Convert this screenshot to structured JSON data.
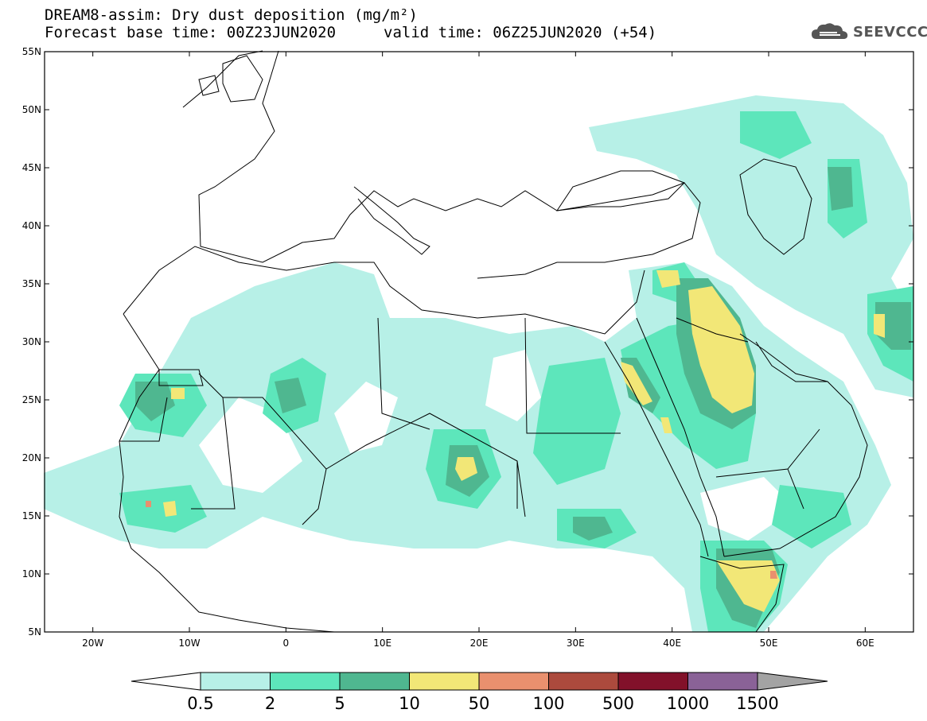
{
  "header": {
    "title_line1": "DREAM8-assim: Dry dust deposition (mg/m²)",
    "title_line2": "Forecast base time: 00Z23JUN2020",
    "valid_time": "valid time: 06Z25JUN2020 (+54)",
    "logo_text": "SEEVCCC",
    "logo_icon": "cloud-logo-icon"
  },
  "axes": {
    "lat_labels": [
      "55N",
      "50N",
      "45N",
      "40N",
      "35N",
      "30N",
      "25N",
      "20N",
      "15N",
      "10N",
      "5N"
    ],
    "lat_values": [
      55,
      50,
      45,
      40,
      35,
      30,
      25,
      20,
      15,
      10,
      5
    ],
    "lon_labels": [
      "20W",
      "10W",
      "0",
      "10E",
      "20E",
      "30E",
      "40E",
      "50E",
      "60E"
    ],
    "lon_values": [
      -20,
      -10,
      0,
      10,
      20,
      30,
      40,
      50,
      60
    ],
    "lon_range": [
      -25,
      65
    ],
    "lat_range": [
      5,
      55
    ]
  },
  "colorbar": {
    "labels": [
      "0.5",
      "2",
      "5",
      "10",
      "50",
      "100",
      "500",
      "1000",
      "1500"
    ],
    "colors": [
      "#ffffff",
      "#b7f0e7",
      "#5de6bb",
      "#4fb790",
      "#f2e777",
      "#e9906e",
      "#ac4a3d",
      "#82112a",
      "#8a6297",
      "#a3a3a3"
    ]
  },
  "levels": {
    "l1": "#b7f0e7",
    "l2": "#5de6bb",
    "l3": "#4fb790",
    "l4": "#f2e777",
    "l5": "#e9906e"
  }
}
